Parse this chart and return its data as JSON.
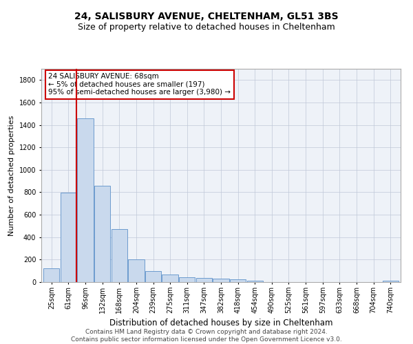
{
  "title": "24, SALISBURY AVENUE, CHELTENHAM, GL51 3BS",
  "subtitle": "Size of property relative to detached houses in Cheltenham",
  "xlabel": "Distribution of detached houses by size in Cheltenham",
  "ylabel": "Number of detached properties",
  "categories": [
    "25sqm",
    "61sqm",
    "96sqm",
    "132sqm",
    "168sqm",
    "204sqm",
    "239sqm",
    "275sqm",
    "311sqm",
    "347sqm",
    "382sqm",
    "418sqm",
    "454sqm",
    "490sqm",
    "525sqm",
    "561sqm",
    "597sqm",
    "633sqm",
    "668sqm",
    "704sqm",
    "740sqm"
  ],
  "values": [
    120,
    795,
    1460,
    860,
    470,
    200,
    100,
    65,
    40,
    35,
    30,
    22,
    10,
    0,
    0,
    0,
    0,
    0,
    0,
    0,
    10
  ],
  "bar_color": "#c9d9ed",
  "bar_edge_color": "#5b8fc9",
  "red_line_x": 1.48,
  "marker_label": "24 SALISBURY AVENUE: 68sqm",
  "annotation_line1": "← 5% of detached houses are smaller (197)",
  "annotation_line2": "95% of semi-detached houses are larger (3,980) →",
  "annotation_box_color": "#ffffff",
  "annotation_box_edge": "#cc0000",
  "red_line_color": "#cc0000",
  "background_color": "#ffffff",
  "ax_background": "#eef2f8",
  "footer_line1": "Contains HM Land Registry data © Crown copyright and database right 2024.",
  "footer_line2": "Contains public sector information licensed under the Open Government Licence v3.0.",
  "ylim": [
    0,
    1900
  ],
  "title_fontsize": 10,
  "subtitle_fontsize": 9,
  "ylabel_fontsize": 8,
  "xlabel_fontsize": 8.5,
  "tick_fontsize": 7,
  "annot_fontsize": 7.5,
  "footer_fontsize": 6.5
}
